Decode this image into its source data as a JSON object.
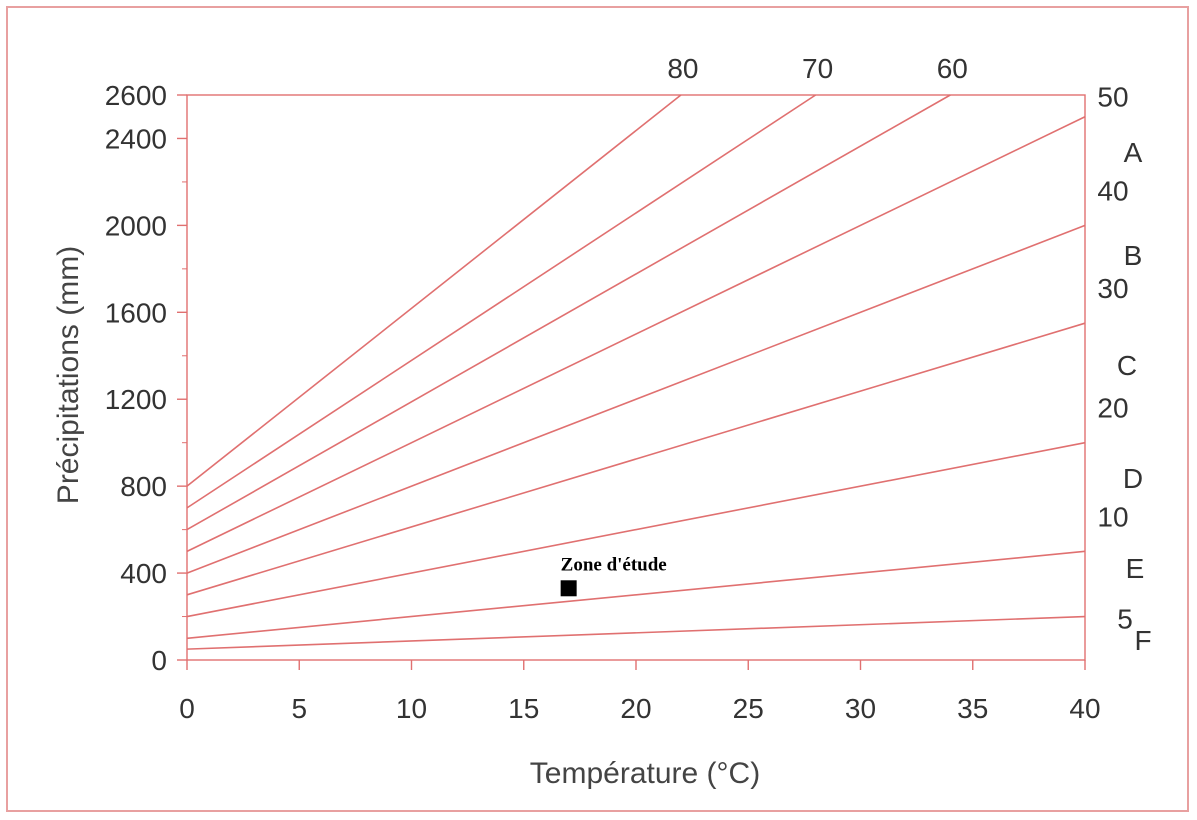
{
  "chart_data": {
    "type": "line",
    "title": "",
    "xlabel": "Température (°C)",
    "ylabel": "Précipitations (mm)",
    "xlim": [
      0,
      40
    ],
    "ylim": [
      0,
      2600
    ],
    "x_ticks": [
      0,
      5,
      10,
      15,
      20,
      25,
      30,
      35,
      40
    ],
    "y_ticks": [
      0,
      400,
      800,
      1200,
      1600,
      2000,
      2400,
      2600
    ],
    "grid": false,
    "line_color": "#e07070",
    "series": [
      {
        "label": "80",
        "points": [
          [
            0,
            800
          ],
          [
            22,
            2600
          ]
        ]
      },
      {
        "label": "70",
        "points": [
          [
            0,
            700
          ],
          [
            28,
            2600
          ]
        ]
      },
      {
        "label": "60",
        "points": [
          [
            0,
            600
          ],
          [
            34,
            2600
          ]
        ]
      },
      {
        "label": "50",
        "points": [
          [
            0,
            500
          ],
          [
            40,
            2500
          ]
        ]
      },
      {
        "label": "40",
        "points": [
          [
            0,
            400
          ],
          [
            40,
            2000
          ]
        ]
      },
      {
        "label": "30",
        "points": [
          [
            0,
            300
          ],
          [
            40,
            1550
          ]
        ]
      },
      {
        "label": "20",
        "points": [
          [
            0,
            200
          ],
          [
            40,
            1000
          ]
        ]
      },
      {
        "label": "10",
        "points": [
          [
            0,
            100
          ],
          [
            40,
            500
          ]
        ]
      },
      {
        "label": "5",
        "points": [
          [
            0,
            50
          ],
          [
            40,
            200
          ]
        ]
      }
    ],
    "zone_letters": [
      "A",
      "B",
      "C",
      "D",
      "E",
      "F"
    ],
    "annotation": {
      "text": "Zone d'étude",
      "x": 17,
      "y": 330,
      "marker_color": "#000000"
    }
  }
}
